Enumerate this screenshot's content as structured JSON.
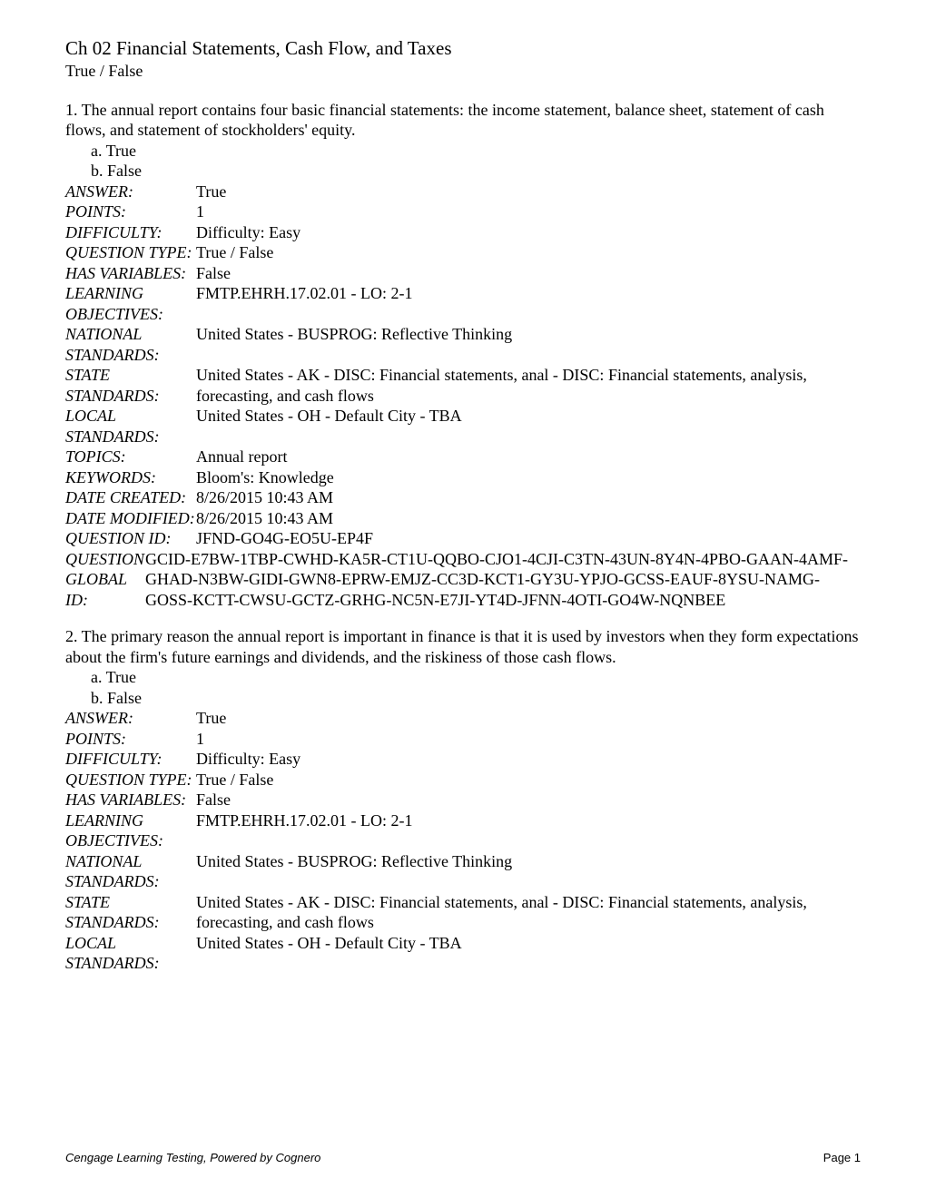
{
  "chapter": {
    "title": "Ch 02 Financial Statements, Cash Flow, and Taxes",
    "section_type": "True / False"
  },
  "questions": [
    {
      "number": "1.",
      "text": "1. The annual report contains four basic financial statements: the income statement, balance sheet, statement of cash flows, and statement of stockholders' equity.",
      "option_a": "a. True",
      "option_b": "b. False",
      "meta": {
        "answer_label": "ANSWER:",
        "answer_value": "True",
        "points_label": "POINTS:",
        "points_value": "1",
        "difficulty_label": "DIFFICULTY:",
        "difficulty_value": "Difficulty: Easy",
        "qtype_label": "QUESTION TYPE:",
        "qtype_value": "True / False",
        "hasvar_label": "HAS VARIABLES:",
        "hasvar_value": "False",
        "lo_label": "LEARNING OBJECTIVES:",
        "lo_value": "FMTP.EHRH.17.02.01 - LO: 2-1",
        "natstd_label": "NATIONAL STANDARDS:",
        "natstd_value": "United States - BUSPROG: Reflective Thinking",
        "statestd_label": "STATE STANDARDS:",
        "statestd_value": "United States - AK - DISC: Financial statements, anal - DISC: Financial statements, analysis, forecasting, and cash flows",
        "localstd_label": "LOCAL STANDARDS:",
        "localstd_value": "United States - OH - Default City - TBA",
        "topics_label": "TOPICS:",
        "topics_value": "Annual report",
        "keywords_label": "KEYWORDS:",
        "keywords_value": "Bloom's: Knowledge",
        "created_label": "DATE CREATED:",
        "created_value": "8/26/2015 10:43 AM",
        "modified_label": "DATE MODIFIED:",
        "modified_value": "8/26/2015 10:43 AM",
        "qid_label": "QUESTION ID:",
        "qid_value": "JFND-GO4G-EO5U-EP4F",
        "global_label": "QUESTION GLOBAL ID:",
        "global_value": "GCID-E7BW-1TBP-CWHD-KA5R-CT1U-QQBO-CJO1-4CJI-C3TN-43UN-8Y4N-4PBO-GAAN-4AMF-GHAD-N3BW-GIDI-GWN8-EPRW-EMJZ-CC3D-KCT1-GY3U-YPJO-GCSS-EAUF-8YSU-NAMG-GOSS-KCTT-CWSU-GCTZ-GRHG-NC5N-E7JI-YT4D-JFNN-4OTI-GO4W-NQNBEE"
      }
    },
    {
      "number": "2.",
      "text": "2. The primary reason the annual report is important in finance is that it is used by investors when they form expectations about the firm's future earnings and dividends, and the riskiness of those cash flows.",
      "option_a": "a. True",
      "option_b": "b. False",
      "meta": {
        "answer_label": "ANSWER:",
        "answer_value": "True",
        "points_label": "POINTS:",
        "points_value": "1",
        "difficulty_label": "DIFFICULTY:",
        "difficulty_value": "Difficulty: Easy",
        "qtype_label": "QUESTION TYPE:",
        "qtype_value": "True / False",
        "hasvar_label": "HAS VARIABLES:",
        "hasvar_value": "False",
        "lo_label": "LEARNING OBJECTIVES:",
        "lo_value": "FMTP.EHRH.17.02.01 - LO: 2-1",
        "natstd_label": "NATIONAL STANDARDS:",
        "natstd_value": "United States - BUSPROG: Reflective Thinking",
        "statestd_label": "STATE STANDARDS:",
        "statestd_value": "United States - AK - DISC: Financial statements, anal - DISC: Financial statements, analysis, forecasting, and cash flows",
        "localstd_label": "LOCAL STANDARDS:",
        "localstd_value": "United States - OH - Default City - TBA"
      }
    }
  ],
  "footer": {
    "left": "Cengage Learning Testing, Powered by Cognero",
    "right": "Page 1"
  }
}
